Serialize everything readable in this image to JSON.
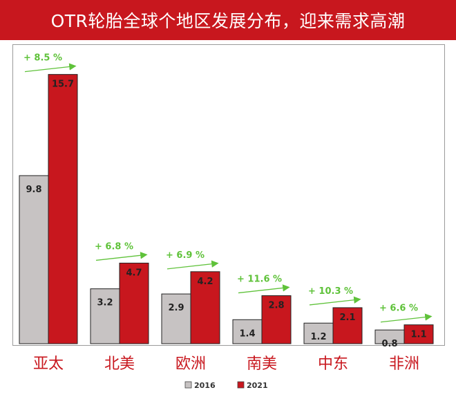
{
  "title": "OTR轮胎全球个地区发展分布，迎来需求高潮",
  "colors": {
    "title_bg": "#c8171e",
    "series_2016": "#c7c3c3",
    "series_2021": "#c8171e",
    "growth_arrow": "#5fc23a",
    "category_label": "#c8171e"
  },
  "chart_data": {
    "type": "bar",
    "categories": [
      "亚太",
      "北美",
      "欧洲",
      "南美",
      "中东",
      "非洲"
    ],
    "series": [
      {
        "name": "2016",
        "values": [
          9.8,
          3.2,
          2.9,
          1.4,
          1.2,
          0.8
        ]
      },
      {
        "name": "2021",
        "values": [
          15.7,
          4.7,
          4.2,
          2.8,
          2.1,
          1.1
        ]
      }
    ],
    "growth_labels": [
      "+ 8.5 %",
      "+ 6.8 %",
      "+ 6.9 %",
      "+ 11.6 %",
      "+ 10.3 %",
      "+ 6.6 %"
    ],
    "value_labels_2016": [
      "9.8",
      "3.2",
      "2.9",
      "1.4",
      "1.2",
      "0.8"
    ],
    "value_labels_2021": [
      "15.7",
      "4.7",
      "4.2",
      "2.8",
      "2.1",
      "1.1"
    ],
    "legend": [
      "2016",
      "2021"
    ],
    "legend_position": "bottom",
    "ylim": [
      0,
      15.7
    ],
    "grid": false
  }
}
